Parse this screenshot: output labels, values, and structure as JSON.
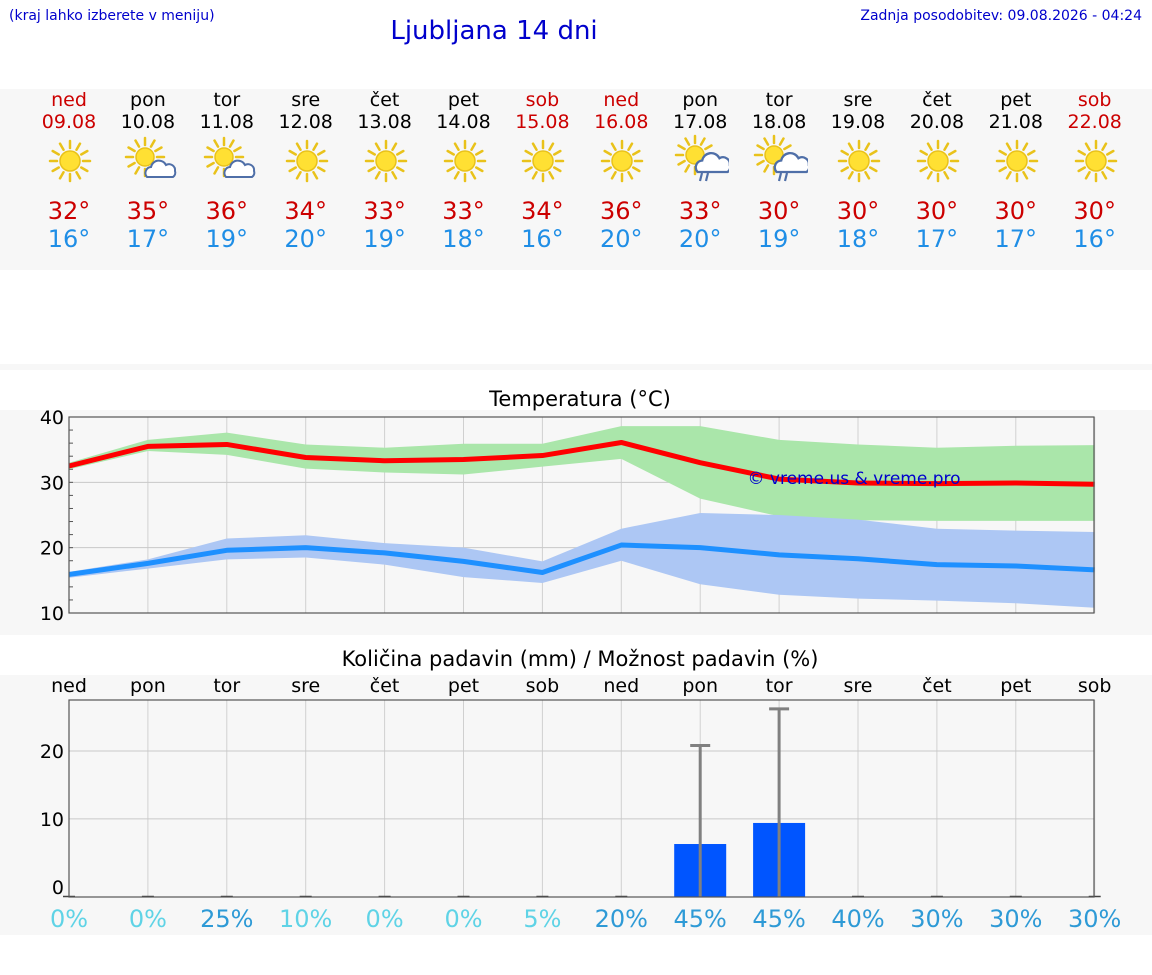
{
  "header": {
    "hint": "(kraj lahko izberete v meniju)",
    "title": "Ljubljana 14 dni",
    "updated": "Zadnja posodobitev: 09.08.2026 - 04:24"
  },
  "days": [
    {
      "name": "ned",
      "date": "09.08",
      "weekend": true,
      "icon": "sun-icon",
      "tmax": "32°",
      "tmin": "16°"
    },
    {
      "name": "pon",
      "date": "10.08",
      "weekend": false,
      "icon": "sun-cloud-icon",
      "tmax": "35°",
      "tmin": "17°"
    },
    {
      "name": "tor",
      "date": "11.08",
      "weekend": false,
      "icon": "sun-cloud-icon",
      "tmax": "36°",
      "tmin": "19°"
    },
    {
      "name": "sre",
      "date": "12.08",
      "weekend": false,
      "icon": "sun-icon",
      "tmax": "34°",
      "tmin": "20°"
    },
    {
      "name": "čet",
      "date": "13.08",
      "weekend": false,
      "icon": "sun-icon",
      "tmax": "33°",
      "tmin": "19°"
    },
    {
      "name": "pet",
      "date": "14.08",
      "weekend": false,
      "icon": "sun-icon",
      "tmax": "33°",
      "tmin": "18°"
    },
    {
      "name": "sob",
      "date": "15.08",
      "weekend": true,
      "icon": "sun-icon",
      "tmax": "34°",
      "tmin": "16°"
    },
    {
      "name": "ned",
      "date": "16.08",
      "weekend": true,
      "icon": "sun-icon",
      "tmax": "36°",
      "tmin": "20°"
    },
    {
      "name": "pon",
      "date": "17.08",
      "weekend": false,
      "icon": "sun-rain-icon",
      "tmax": "33°",
      "tmin": "20°"
    },
    {
      "name": "tor",
      "date": "18.08",
      "weekend": false,
      "icon": "sun-rain-icon",
      "tmax": "30°",
      "tmin": "19°"
    },
    {
      "name": "sre",
      "date": "19.08",
      "weekend": false,
      "icon": "sun-icon",
      "tmax": "30°",
      "tmin": "18°"
    },
    {
      "name": "čet",
      "date": "20.08",
      "weekend": false,
      "icon": "sun-icon",
      "tmax": "30°",
      "tmin": "17°"
    },
    {
      "name": "pet",
      "date": "21.08",
      "weekend": false,
      "icon": "sun-icon",
      "tmax": "30°",
      "tmin": "17°"
    },
    {
      "name": "sob",
      "date": "22.08",
      "weekend": true,
      "icon": "sun-icon",
      "tmax": "30°",
      "tmin": "16°"
    }
  ],
  "chart_data": [
    {
      "type": "line",
      "title": "Temperatura (°C)",
      "watermark": "© vreme.us & vreme.pro",
      "ylim": [
        10,
        40
      ],
      "yticks": [
        10,
        20,
        30,
        40
      ],
      "grid": true,
      "x": [
        0,
        1,
        2,
        3,
        4,
        5,
        6,
        7,
        8,
        9,
        10,
        11,
        12,
        13
      ],
      "series": [
        {
          "color": "#ff0000",
          "band_color": "#aae6aa",
          "values": [
            32.5,
            35.5,
            35.8,
            33.8,
            33.3,
            33.5,
            34.1,
            36.1,
            33.0,
            30.5,
            29.9,
            29.8,
            29.9,
            29.7
          ],
          "band_low": [
            32.0,
            34.8,
            34.2,
            32.1,
            31.5,
            31.2,
            32.4,
            33.6,
            27.5,
            24.8,
            24.2,
            24.1,
            24.1,
            24.1
          ],
          "band_high": [
            33.0,
            36.5,
            37.6,
            35.8,
            35.3,
            35.9,
            35.9,
            38.6,
            38.6,
            36.5,
            35.8,
            35.3,
            35.6,
            35.7
          ]
        },
        {
          "color": "#1e90ff",
          "band_color": "#adc7f4",
          "values": [
            15.9,
            17.6,
            19.6,
            20.0,
            19.2,
            17.9,
            16.2,
            20.4,
            20.0,
            18.9,
            18.3,
            17.4,
            17.2,
            16.6
          ],
          "band_low": [
            15.4,
            16.8,
            18.2,
            18.5,
            17.4,
            15.5,
            14.6,
            18.0,
            14.4,
            12.8,
            12.2,
            11.9,
            11.5,
            10.8
          ],
          "band_high": [
            16.3,
            18.2,
            21.4,
            21.9,
            20.7,
            20.0,
            17.9,
            22.9,
            25.3,
            25.0,
            24.3,
            22.9,
            22.6,
            22.4
          ]
        }
      ]
    },
    {
      "type": "bar",
      "title": "Količina padavin (mm) / Možnost padavin (%)",
      "categories": [
        "ned",
        "pon",
        "tor",
        "sre",
        "čet",
        "pet",
        "sob",
        "ned",
        "pon",
        "tor",
        "sre",
        "čet",
        "pet",
        "sob"
      ],
      "ylim": [
        -1.5,
        27.5
      ],
      "yticks": [
        0,
        10,
        20
      ],
      "grid": true,
      "values": [
        0,
        0,
        0,
        0,
        0,
        0,
        0,
        0,
        6.3,
        9.4,
        0,
        0,
        0,
        0
      ],
      "error_high": [
        0,
        0,
        0,
        0,
        0,
        0,
        0,
        0,
        20.8,
        26.2,
        0,
        0,
        0,
        0
      ],
      "bar_color": "#0055ff",
      "probability": [
        "0%",
        "0%",
        "25%",
        "10%",
        "0%",
        "0%",
        "5%",
        "20%",
        "45%",
        "45%",
        "40%",
        "30%",
        "30%",
        "30%"
      ],
      "probability_colors": [
        "#5fd3e6",
        "#5fd3e6",
        "#2e9ad6",
        "#5fd3e6",
        "#5fd3e6",
        "#5fd3e6",
        "#5fd3e6",
        "#2e9ad6",
        "#2e9ad6",
        "#2e9ad6",
        "#2e9ad6",
        "#2e9ad6",
        "#2e9ad6",
        "#2e9ad6"
      ]
    }
  ]
}
